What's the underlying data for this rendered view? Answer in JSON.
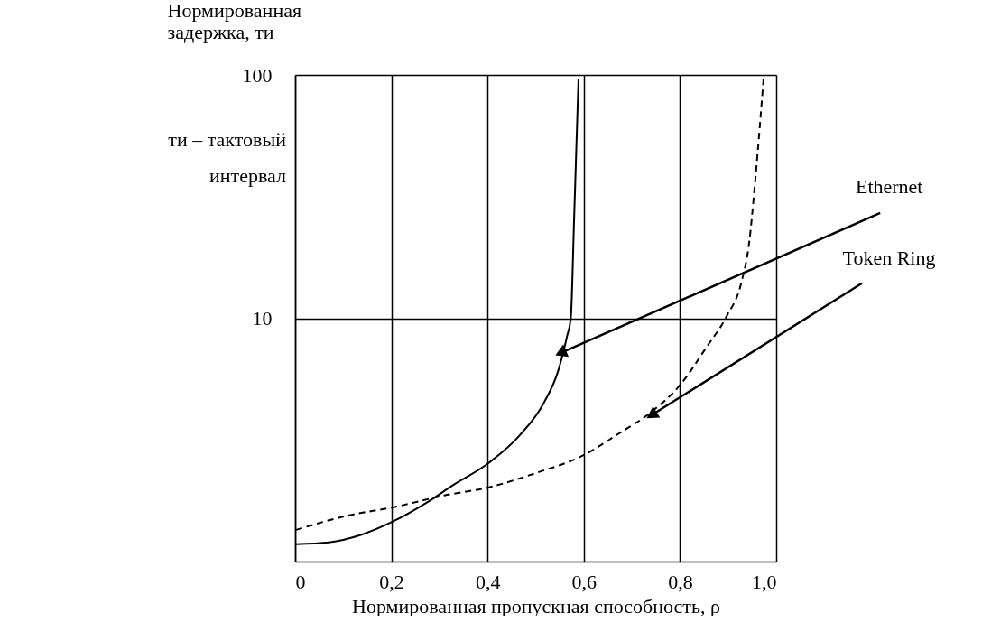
{
  "chart_data": {
    "type": "line",
    "xlabel": "Нормированная пропускная способность, ρ",
    "ylabel": "Нормированная задержка, ти",
    "xlim": [
      0,
      1
    ],
    "ylim": [
      1,
      100
    ],
    "log": "y",
    "xticks": [
      0,
      {
        "value": 0.2,
        "label": "0,2"
      },
      {
        "value": 0.4,
        "label": "0,4"
      },
      {
        "value": 0.6,
        "label": "0,6"
      },
      {
        "value": 0.8,
        "label": "0,8"
      },
      {
        "value": 1.0,
        "label": "1,0"
      }
    ],
    "yticks": [
      10,
      100
    ],
    "grid": true,
    "series": [
      {
        "color": "#000000",
        "line_style": "solid",
        "x": [
          0.002,
          0.07,
          0.138,
          0.203,
          0.276,
          0.328,
          0.403,
          0.466,
          0.517,
          0.547,
          0.565,
          0.573,
          0.58,
          0.589
        ],
        "values": [
          1.18,
          1.2,
          1.29,
          1.46,
          1.76,
          2.06,
          2.55,
          3.29,
          4.49,
          6.1,
          8.4,
          10,
          26,
          96
        ]
      },
      {
        "color": "#000000",
        "line_style": "dashed",
        "x": [
          0.002,
          0.112,
          0.203,
          0.31,
          0.403,
          0.5,
          0.602,
          0.672,
          0.737,
          0.802,
          0.853,
          0.897,
          0.927,
          0.944,
          0.957,
          0.974
        ],
        "values": [
          1.35,
          1.55,
          1.67,
          1.87,
          2.02,
          2.31,
          2.75,
          3.35,
          4.07,
          5.37,
          7.5,
          10.2,
          13.9,
          20.6,
          38,
          98
        ]
      }
    ],
    "annotations": [
      {
        "text": "Ethernet",
        "x": 0.552,
        "y": 7.2
      },
      {
        "text": "Token Ring",
        "x": 0.741,
        "y": 4.0
      },
      "ти – тактовый интервал"
    ]
  }
}
